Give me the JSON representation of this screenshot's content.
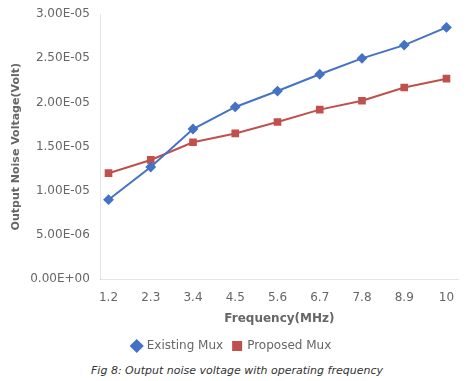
{
  "chart_data": {
    "type": "line",
    "caption": "Fig 8: Output noise voltage with operating frequency",
    "x_label": "Frequency(MHz)",
    "y_label": "Output Noise Voltage(Volt)",
    "x": [
      1.2,
      2.3,
      3.4,
      4.5,
      5.6,
      6.7,
      7.8,
      8.9,
      10
    ],
    "series": [
      {
        "name": "Existing Mux",
        "color": "#4472C4",
        "marker": "diamond",
        "values": [
          9e-06,
          1.27e-05,
          1.7e-05,
          1.95e-05,
          2.13e-05,
          2.32e-05,
          2.5e-05,
          2.65e-05,
          2.85e-05
        ]
      },
      {
        "name": "Proposed Mux",
        "color": "#C0504D",
        "marker": "square",
        "values": [
          1.2e-05,
          1.35e-05,
          1.55e-05,
          1.65e-05,
          1.78e-05,
          1.92e-05,
          2.02e-05,
          2.17e-05,
          2.27e-05
        ]
      }
    ],
    "xlim": [
      1.0,
      10.3
    ],
    "xticks": [
      1.2,
      2.3,
      3.4,
      4.5,
      5.6,
      6.7,
      7.8,
      8.9,
      10
    ],
    "ylim": [
      0,
      3e-05
    ],
    "yticks": [
      {
        "value": 0,
        "label": "0.00E+00"
      },
      {
        "value": 5e-06,
        "label": "5.00E-06"
      },
      {
        "value": 1e-05,
        "label": "1.00E-05"
      },
      {
        "value": 1.5e-05,
        "label": "1.50E-05"
      },
      {
        "value": 2e-05,
        "label": "2.00E-05"
      },
      {
        "value": 2.5e-05,
        "label": "2.50E-05"
      },
      {
        "value": 3e-05,
        "label": "3.00E-05"
      }
    ],
    "grid": false,
    "legend": "bottom"
  }
}
